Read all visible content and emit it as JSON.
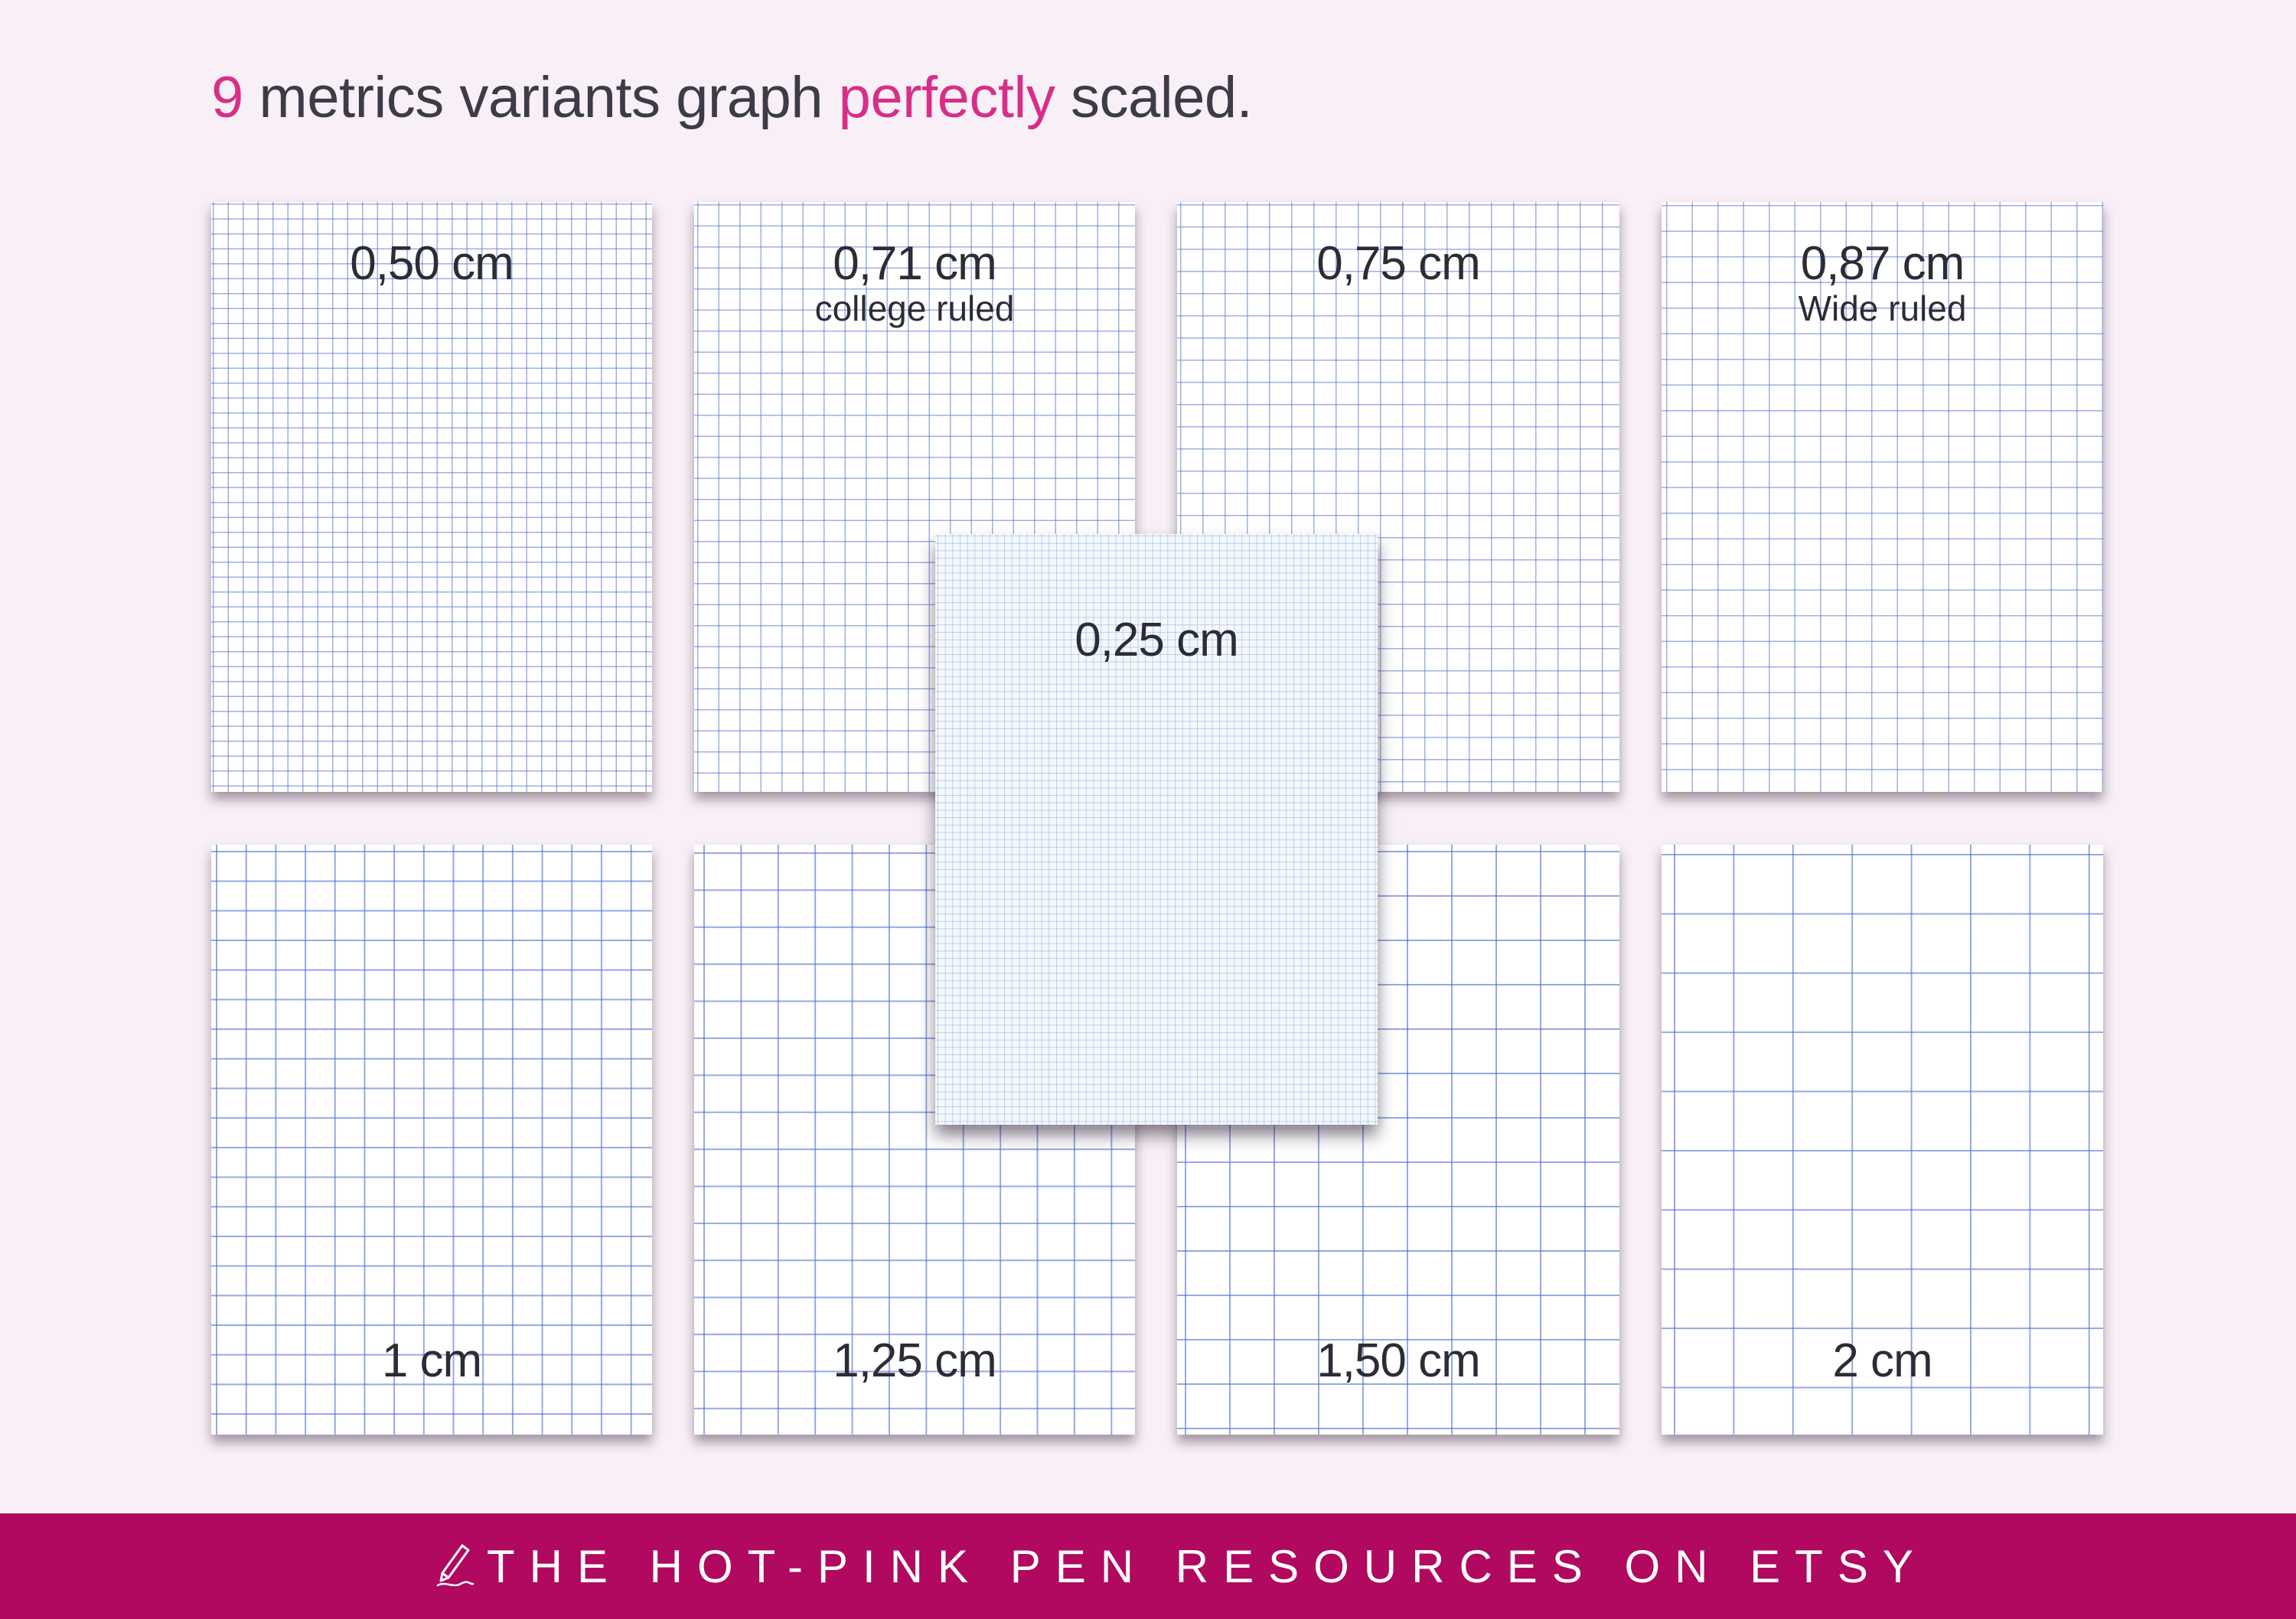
{
  "headline": {
    "number": "9",
    "text_mid": " metrics variants graph ",
    "highlight": "perfectly",
    "text_end": " scaled."
  },
  "sheets": [
    {
      "size": "0,50 cm",
      "sub": ""
    },
    {
      "size": "0,71 cm",
      "sub": "college ruled"
    },
    {
      "size": "0,75 cm",
      "sub": ""
    },
    {
      "size": "0,87 cm",
      "sub": "Wide ruled"
    },
    {
      "size": "1 cm",
      "sub": ""
    },
    {
      "size": "1,25 cm",
      "sub": ""
    },
    {
      "size": "1,50 cm",
      "sub": ""
    },
    {
      "size": "2 cm",
      "sub": ""
    },
    {
      "size": "0,25 cm",
      "sub": ""
    }
  ],
  "footer": {
    "text": "THE HOT-PINK PEN RESOURCES ON ETSY",
    "icon": "pen-icon"
  },
  "colors": {
    "background": "#f8f0f6",
    "accent_pink": "#d62f89",
    "footer_bar": "#b0095f",
    "grid_line": "#506ed2",
    "text_dark": "#2c2c36"
  }
}
